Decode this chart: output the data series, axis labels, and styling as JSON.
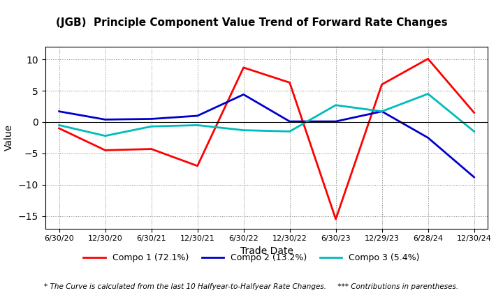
{
  "title": "(JGB)  Principle Component Value Trend of Forward Rate Changes",
  "xlabel": "Trade Date",
  "ylabel": "Value",
  "footnote": "* The Curve is calculated from the last 10 Halfyear-to-Halfyear Rate Changes.     *** Contributions in parentheses.",
  "x_labels": [
    "6/30/20",
    "12/30/20",
    "6/30/21",
    "12/30/21",
    "6/30/22",
    "12/30/22",
    "6/30/23",
    "12/29/23",
    "6/28/24",
    "12/30/24"
  ],
  "compo1": {
    "label": "Compo 1 (72.1%)",
    "color": "#FF0000",
    "values": [
      -1.0,
      -4.5,
      -4.3,
      -7.0,
      8.7,
      6.3,
      -15.5,
      6.0,
      10.1,
      1.5
    ]
  },
  "compo2": {
    "label": "Compo 2 (13.2%)",
    "color": "#0000CC",
    "values": [
      1.7,
      0.4,
      0.5,
      1.0,
      4.4,
      0.1,
      0.1,
      1.7,
      -2.5,
      -8.8
    ]
  },
  "compo3": {
    "label": "Compo 3 (5.4%)",
    "color": "#00BBBB",
    "values": [
      -0.5,
      -2.2,
      -0.7,
      -0.5,
      -1.3,
      -1.5,
      2.7,
      1.7,
      4.5,
      -1.5
    ]
  },
  "ylim": [
    -17,
    12
  ],
  "yticks": [
    -15,
    -10,
    -5,
    0,
    5,
    10
  ],
  "background_color": "#FFFFFF",
  "plot_bg_color": "#FFFFFF"
}
